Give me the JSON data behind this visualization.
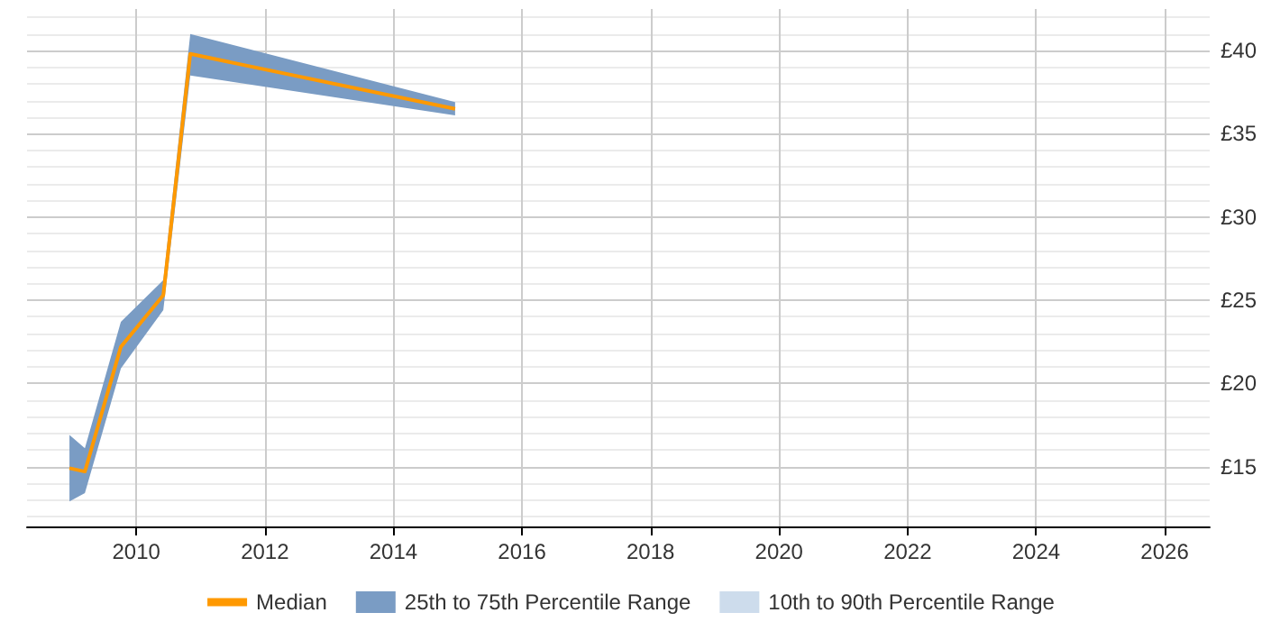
{
  "chart_data": {
    "type": "line",
    "x": [
      2008.96,
      2009.2,
      2009.76,
      2010.42,
      2010.84,
      2014.96
    ],
    "series": [
      {
        "name": "Median",
        "color": "#ff9900",
        "values": [
          14.9,
          14.7,
          22.2,
          25.3,
          39.8,
          36.5
        ]
      },
      {
        "name": "25th to 75th Percentile Range",
        "type": "area",
        "color": "#7a9cc4",
        "values": [
          null,
          null,
          null,
          null,
          null,
          null
        ],
        "lower": [
          12.9,
          13.4,
          20.9,
          24.4,
          38.5,
          36.1
        ],
        "upper": [
          16.9,
          16.1,
          23.7,
          26.2,
          41.0,
          36.9
        ]
      },
      {
        "name": "10th to 90th Percentile Range",
        "type": "area",
        "color": "#cddcec",
        "values": [
          null,
          null,
          null,
          null,
          null,
          null
        ],
        "lower": [
          null,
          null,
          null,
          null,
          null,
          null
        ],
        "upper": [
          null,
          null,
          null,
          null,
          null,
          null
        ]
      }
    ],
    "xlim": [
      2008.3,
      2026.7
    ],
    "xticks": [
      2010,
      2012,
      2014,
      2016,
      2018,
      2020,
      2022,
      2024,
      2026
    ],
    "ylim": [
      11.4,
      42.5
    ],
    "yticks": [
      {
        "value": 12,
        "label": null
      },
      {
        "value": 13,
        "label": null
      },
      {
        "value": 14,
        "label": null
      },
      {
        "value": 15,
        "label": "£15"
      },
      {
        "value": 16,
        "label": null
      },
      {
        "value": 17,
        "label": null
      },
      {
        "value": 18,
        "label": null
      },
      {
        "value": 19,
        "label": null
      },
      {
        "value": 20,
        "label": "£20"
      },
      {
        "value": 21,
        "label": null
      },
      {
        "value": 22,
        "label": null
      },
      {
        "value": 23,
        "label": null
      },
      {
        "value": 24,
        "label": null
      },
      {
        "value": 25,
        "label": "£25"
      },
      {
        "value": 26,
        "label": null
      },
      {
        "value": 27,
        "label": null
      },
      {
        "value": 28,
        "label": null
      },
      {
        "value": 29,
        "label": null
      },
      {
        "value": 30,
        "label": "£30"
      },
      {
        "value": 31,
        "label": null
      },
      {
        "value": 32,
        "label": null
      },
      {
        "value": 33,
        "label": null
      },
      {
        "value": 34,
        "label": null
      },
      {
        "value": 35,
        "label": "£35"
      },
      {
        "value": 36,
        "label": null
      },
      {
        "value": 37,
        "label": null
      },
      {
        "value": 38,
        "label": null
      },
      {
        "value": 39,
        "label": null
      },
      {
        "value": 40,
        "label": "£40"
      },
      {
        "value": 41,
        "label": null
      },
      {
        "value": 42,
        "label": null
      }
    ],
    "grid": true,
    "legend": "bottom",
    "marker": "none",
    "line_style": "solid"
  }
}
